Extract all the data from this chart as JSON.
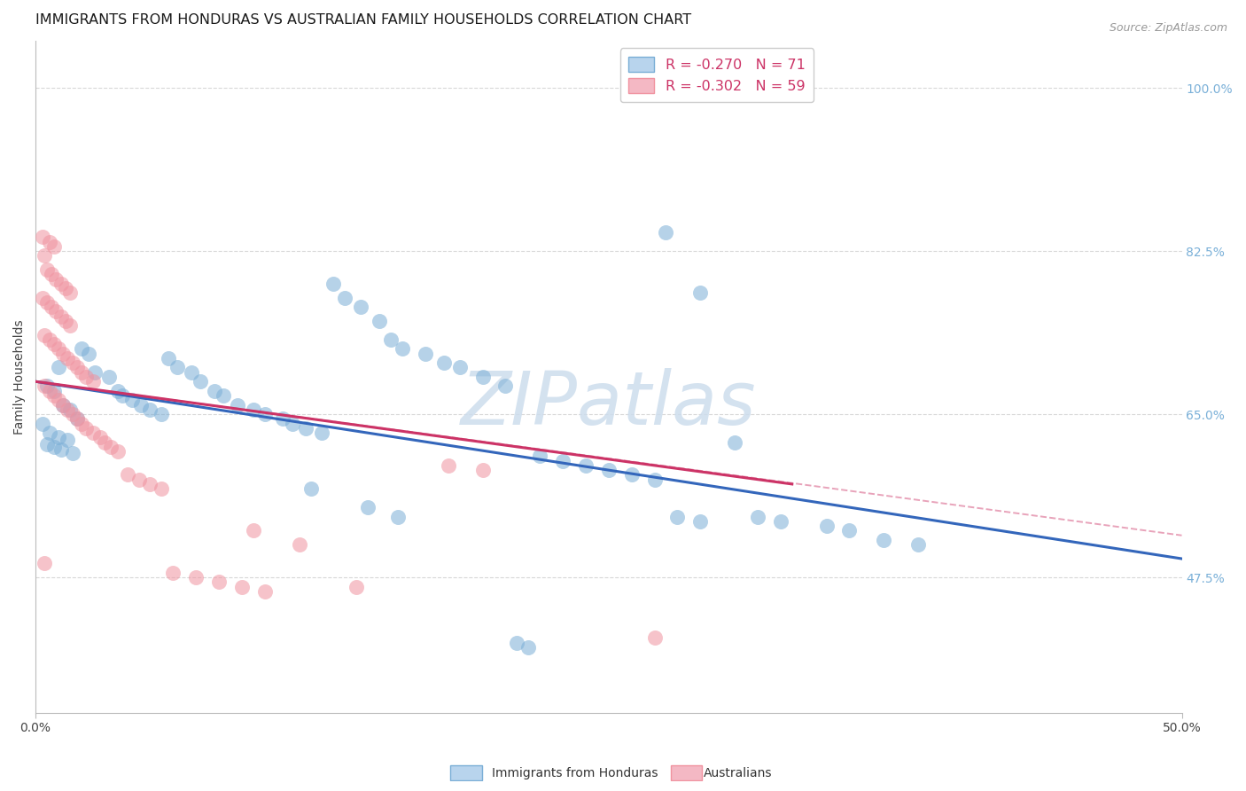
{
  "title": "IMMIGRANTS FROM HONDURAS VS AUSTRALIAN FAMILY HOUSEHOLDS CORRELATION CHART",
  "source": "Source: ZipAtlas.com",
  "ylabel": "Family Households",
  "right_ytick_pcts": [
    47.5,
    65.0,
    82.5,
    100.0
  ],
  "right_ytick_labels": [
    "47.5%",
    "65.0%",
    "82.5%",
    "100.0%"
  ],
  "xlim_pct": [
    0.0,
    50.0
  ],
  "ylim_pct": [
    33.0,
    105.0
  ],
  "blue_color": "#7aaed6",
  "pink_color": "#f093a0",
  "blue_scatter": [
    [
      0.5,
      68.0
    ],
    [
      0.8,
      67.5
    ],
    [
      1.0,
      70.0
    ],
    [
      1.2,
      66.0
    ],
    [
      1.5,
      65.5
    ],
    [
      1.8,
      64.5
    ],
    [
      0.3,
      64.0
    ],
    [
      0.6,
      63.0
    ],
    [
      1.0,
      62.5
    ],
    [
      1.4,
      62.2
    ],
    [
      0.5,
      61.8
    ],
    [
      0.8,
      61.5
    ],
    [
      1.1,
      61.2
    ],
    [
      1.6,
      60.8
    ],
    [
      2.0,
      72.0
    ],
    [
      2.3,
      71.5
    ],
    [
      2.6,
      69.5
    ],
    [
      3.2,
      69.0
    ],
    [
      3.6,
      67.5
    ],
    [
      3.8,
      67.0
    ],
    [
      4.2,
      66.5
    ],
    [
      4.6,
      66.0
    ],
    [
      5.0,
      65.5
    ],
    [
      5.5,
      65.0
    ],
    [
      5.8,
      71.0
    ],
    [
      6.2,
      70.0
    ],
    [
      6.8,
      69.5
    ],
    [
      7.2,
      68.5
    ],
    [
      7.8,
      67.5
    ],
    [
      8.2,
      67.0
    ],
    [
      8.8,
      66.0
    ],
    [
      9.5,
      65.5
    ],
    [
      10.0,
      65.0
    ],
    [
      10.8,
      64.5
    ],
    [
      11.2,
      64.0
    ],
    [
      11.8,
      63.5
    ],
    [
      12.5,
      63.0
    ],
    [
      13.0,
      79.0
    ],
    [
      13.5,
      77.5
    ],
    [
      14.2,
      76.5
    ],
    [
      15.0,
      75.0
    ],
    [
      15.5,
      73.0
    ],
    [
      16.0,
      72.0
    ],
    [
      17.0,
      71.5
    ],
    [
      17.8,
      70.5
    ],
    [
      18.5,
      70.0
    ],
    [
      19.5,
      69.0
    ],
    [
      20.5,
      68.0
    ],
    [
      22.0,
      60.5
    ],
    [
      23.0,
      60.0
    ],
    [
      24.0,
      59.5
    ],
    [
      25.0,
      59.0
    ],
    [
      26.0,
      58.5
    ],
    [
      27.0,
      58.0
    ],
    [
      28.0,
      54.0
    ],
    [
      29.0,
      53.5
    ],
    [
      30.5,
      62.0
    ],
    [
      12.0,
      57.0
    ],
    [
      14.5,
      55.0
    ],
    [
      15.8,
      54.0
    ],
    [
      27.5,
      84.5
    ],
    [
      29.0,
      78.0
    ],
    [
      31.5,
      54.0
    ],
    [
      32.5,
      53.5
    ],
    [
      34.5,
      53.0
    ],
    [
      35.5,
      52.5
    ],
    [
      37.0,
      51.5
    ],
    [
      38.5,
      51.0
    ],
    [
      21.0,
      40.5
    ],
    [
      21.5,
      40.0
    ]
  ],
  "pink_scatter": [
    [
      0.3,
      84.0
    ],
    [
      0.6,
      83.5
    ],
    [
      0.8,
      83.0
    ],
    [
      0.4,
      82.0
    ],
    [
      0.5,
      80.5
    ],
    [
      0.7,
      80.0
    ],
    [
      0.9,
      79.5
    ],
    [
      1.1,
      79.0
    ],
    [
      1.3,
      78.5
    ],
    [
      1.5,
      78.0
    ],
    [
      0.3,
      77.5
    ],
    [
      0.5,
      77.0
    ],
    [
      0.7,
      76.5
    ],
    [
      0.9,
      76.0
    ],
    [
      1.1,
      75.5
    ],
    [
      1.3,
      75.0
    ],
    [
      1.5,
      74.5
    ],
    [
      0.4,
      73.5
    ],
    [
      0.6,
      73.0
    ],
    [
      0.8,
      72.5
    ],
    [
      1.0,
      72.0
    ],
    [
      1.2,
      71.5
    ],
    [
      1.4,
      71.0
    ],
    [
      1.6,
      70.5
    ],
    [
      1.8,
      70.0
    ],
    [
      2.0,
      69.5
    ],
    [
      2.2,
      69.0
    ],
    [
      2.5,
      68.5
    ],
    [
      0.4,
      68.0
    ],
    [
      0.6,
      67.5
    ],
    [
      0.8,
      67.0
    ],
    [
      1.0,
      66.5
    ],
    [
      1.2,
      66.0
    ],
    [
      1.4,
      65.5
    ],
    [
      1.6,
      65.0
    ],
    [
      1.8,
      64.5
    ],
    [
      2.0,
      64.0
    ],
    [
      2.2,
      63.5
    ],
    [
      2.5,
      63.0
    ],
    [
      2.8,
      62.5
    ],
    [
      3.0,
      62.0
    ],
    [
      3.3,
      61.5
    ],
    [
      3.6,
      61.0
    ],
    [
      4.0,
      58.5
    ],
    [
      4.5,
      58.0
    ],
    [
      5.0,
      57.5
    ],
    [
      5.5,
      57.0
    ],
    [
      6.0,
      48.0
    ],
    [
      7.0,
      47.5
    ],
    [
      8.0,
      47.0
    ],
    [
      9.0,
      46.5
    ],
    [
      10.0,
      46.0
    ],
    [
      11.5,
      51.0
    ],
    [
      14.0,
      46.5
    ],
    [
      18.0,
      59.5
    ],
    [
      19.5,
      59.0
    ],
    [
      9.5,
      52.5
    ],
    [
      0.4,
      49.0
    ],
    [
      27.0,
      41.0
    ]
  ],
  "blue_line": {
    "x": [
      0.0,
      50.0
    ],
    "y": [
      68.5,
      49.5
    ]
  },
  "pink_line": {
    "x": [
      0.0,
      33.0
    ],
    "y": [
      68.5,
      57.5
    ]
  },
  "pink_dashed": {
    "x": [
      0.0,
      50.0
    ],
    "y": [
      68.5,
      52.0
    ]
  },
  "watermark": "ZIPatlas",
  "watermark_color": "#cddded",
  "background_color": "#ffffff",
  "grid_color": "#d8d8d8",
  "title_fontsize": 11.5,
  "right_tick_color": "#7ab0d8",
  "legend_blue_face": "#b8d4ed",
  "legend_pink_face": "#f4b8c4",
  "legend_blue_edge": "#7aaed6",
  "legend_pink_edge": "#f093a0"
}
